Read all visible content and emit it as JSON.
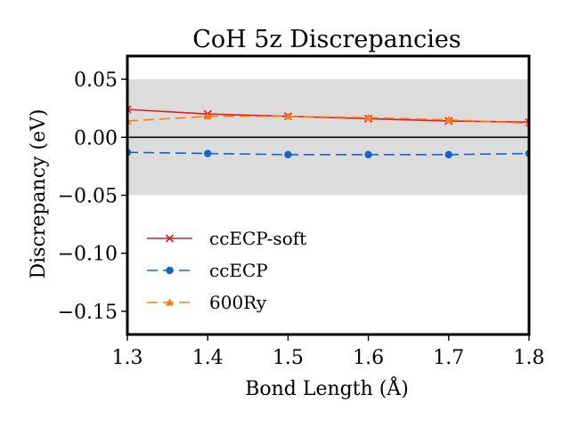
{
  "chart_data": {
    "type": "line",
    "title": "CoH 5z Discrepancies",
    "xlabel": "Bond Length (Å)",
    "ylabel": "Discrepancy (eV)",
    "xlim": [
      1.3,
      1.8
    ],
    "ylim": [
      -0.17,
      0.07
    ],
    "x_ticks": [
      1.3,
      1.4,
      1.5,
      1.6,
      1.7,
      1.8
    ],
    "x_tick_labels": [
      "1.3",
      "1.4",
      "1.5",
      "1.6",
      "1.7",
      "1.8"
    ],
    "y_ticks": [
      0.05,
      0.0,
      -0.05,
      -0.1,
      -0.15
    ],
    "y_tick_labels": [
      "0.05",
      "0.00",
      "−0.05",
      "−0.10",
      "−0.15"
    ],
    "shaded_band": [
      -0.05,
      0.05
    ],
    "reference_line": 0.0,
    "grid": false,
    "legend_position": "lower-left",
    "x": [
      1.3,
      1.4,
      1.5,
      1.6,
      1.7,
      1.8
    ],
    "series": [
      {
        "name": "ccECP-soft",
        "color": "#dd1c1c",
        "marker": "x",
        "dashed": false,
        "values": [
          0.024,
          0.02,
          0.018,
          0.016,
          0.014,
          0.013
        ]
      },
      {
        "name": "ccECP",
        "color": "#1565c8",
        "marker": "circle",
        "dashed": true,
        "values": [
          -0.013,
          -0.014,
          -0.015,
          -0.015,
          -0.015,
          -0.014
        ]
      },
      {
        "name": "600Ry",
        "color": "#ff7f0e",
        "marker": "triangle",
        "dashed": true,
        "values": [
          0.014,
          0.018,
          0.018,
          0.017,
          0.015,
          0.012
        ]
      }
    ]
  }
}
